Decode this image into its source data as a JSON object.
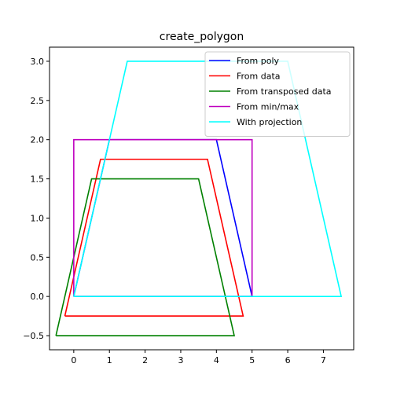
{
  "chart_data": {
    "type": "line",
    "title": "create_polygon",
    "xlabel": "",
    "ylabel": "",
    "xlim": [
      -0.68,
      7.85
    ],
    "ylim": [
      -0.68,
      3.18
    ],
    "xticks": [
      0,
      1,
      2,
      3,
      4,
      5,
      6,
      7
    ],
    "xtick_labels": [
      "0",
      "1",
      "2",
      "3",
      "4",
      "5",
      "6",
      "7"
    ],
    "yticks": [
      -0.5,
      0.0,
      0.5,
      1.0,
      1.5,
      2.0,
      2.5,
      3.0
    ],
    "ytick_labels": [
      "−0.5",
      "0.0",
      "0.5",
      "1.0",
      "1.5",
      "2.0",
      "2.5",
      "3.0"
    ],
    "grid": false,
    "legend_position": "top-right",
    "series": [
      {
        "name": "From poly",
        "color": "#0000ff",
        "x": [
          0,
          1,
          4,
          5,
          0
        ],
        "y": [
          0,
          2,
          2,
          0,
          0
        ]
      },
      {
        "name": "From data",
        "color": "#ff0000",
        "x": [
          -0.25,
          0.75,
          3.75,
          4.75,
          -0.25
        ],
        "y": [
          -0.25,
          1.75,
          1.75,
          -0.25,
          -0.25
        ]
      },
      {
        "name": "From transposed data",
        "color": "#008000",
        "x": [
          -0.5,
          0.5,
          3.5,
          4.5,
          -0.5
        ],
        "y": [
          -0.5,
          1.5,
          1.5,
          -0.5,
          -0.5
        ]
      },
      {
        "name": "From min/max",
        "color": "#bf00bf",
        "x": [
          0,
          0,
          5,
          5,
          0
        ],
        "y": [
          0,
          2,
          2,
          0,
          0
        ]
      },
      {
        "name": "With projection",
        "color": "#00ffff",
        "x": [
          0,
          1.5,
          6,
          7.5,
          0
        ],
        "y": [
          0,
          3,
          3,
          0,
          0
        ]
      }
    ]
  }
}
